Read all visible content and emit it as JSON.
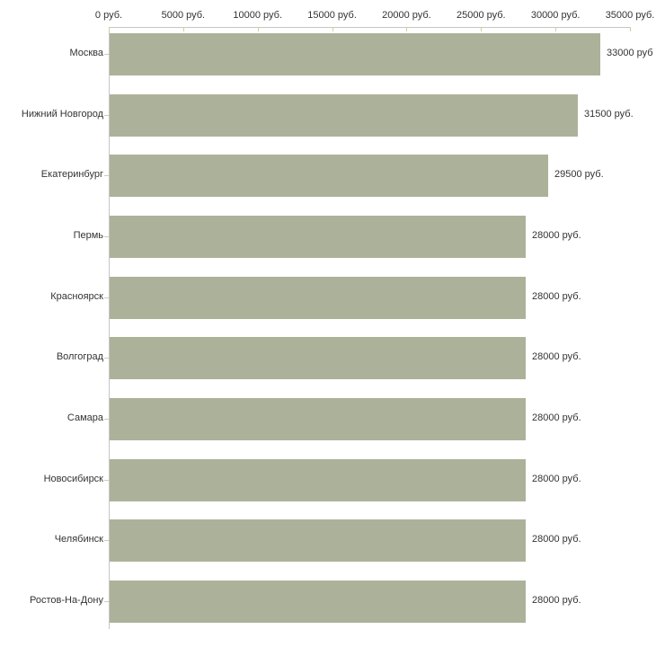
{
  "chart_data": {
    "type": "bar",
    "orientation": "horizontal",
    "title": "",
    "xlabel": "",
    "ylabel": "",
    "grid": false,
    "legend": "none",
    "categories": [
      "Москва",
      "Нижний Новгород",
      "Екатеринбург",
      "Пермь",
      "Красноярск",
      "Волгоград",
      "Самара",
      "Новосибирск",
      "Челябинск",
      "Ростов-На-Дону"
    ],
    "values": [
      33000,
      31500,
      29500,
      28000,
      28000,
      28000,
      28000,
      28000,
      28000,
      28000
    ],
    "value_labels": [
      "33000 руб",
      "31500 руб.",
      "29500 руб.",
      "28000 руб.",
      "28000 руб.",
      "28000 руб.",
      "28000 руб.",
      "28000 руб.",
      "28000 руб.",
      "28000 руб."
    ],
    "x_axis": {
      "max": 35000,
      "ticks": [
        0,
        5000,
        10000,
        15000,
        20000,
        25000,
        30000,
        35000
      ],
      "tick_labels": [
        "0 руб.",
        "5000 руб.",
        "10000 руб.",
        "15000 руб.",
        "20000 руб.",
        "25000 руб.",
        "30000 руб.",
        "35000 руб."
      ]
    },
    "colors": {
      "bar": "#acb29a",
      "axis_line": "#c6c6c6",
      "tick_mark": "#cccfa8",
      "text": "#333333"
    }
  }
}
